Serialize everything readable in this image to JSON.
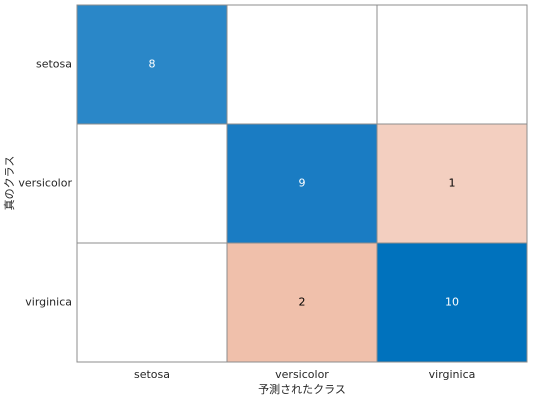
{
  "chart_data": {
    "type": "confusion",
    "x_label": "予測されたクラス",
    "y_label": "真のクラス",
    "categories": [
      "setosa",
      "versicolor",
      "virginica"
    ],
    "values": [
      [
        8,
        null,
        null
      ],
      [
        null,
        9,
        1
      ],
      [
        null,
        2,
        10
      ]
    ],
    "colors": [
      [
        "#2a87c8",
        null,
        null
      ],
      [
        null,
        "#1a7cc3",
        "#f3cfc0"
      ],
      [
        null,
        "#f0c0ab",
        "#0072bd"
      ]
    ]
  }
}
